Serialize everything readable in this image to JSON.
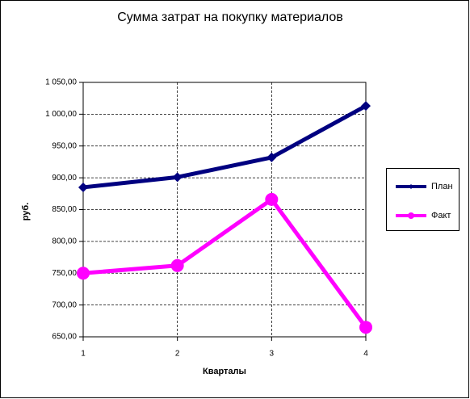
{
  "chart_data": {
    "type": "line",
    "title": "Сумма затрат на покупку материалов",
    "x_label": "Кварталы",
    "y_label": "руб.",
    "x": [
      1,
      2,
      3,
      4
    ],
    "xlim": [
      1,
      4
    ],
    "xticks": [
      1,
      2,
      3,
      4
    ],
    "ylim": [
      650,
      1050
    ],
    "yticks": [
      {
        "value": 650,
        "label": "650,00"
      },
      {
        "value": 700,
        "label": "700,00"
      },
      {
        "value": 750,
        "label": "750,00"
      },
      {
        "value": 800,
        "label": "800,00"
      },
      {
        "value": 850,
        "label": "850,00"
      },
      {
        "value": 900,
        "label": "900,00"
      },
      {
        "value": 950,
        "label": "950,00"
      },
      {
        "value": 1000,
        "label": "1 000,00"
      },
      {
        "value": 1050,
        "label": "1 050,00"
      }
    ],
    "grid": true,
    "legend": "right",
    "series": [
      {
        "name": "План",
        "color": "#000080",
        "marker": "diamond",
        "values": [
          885,
          901,
          932,
          1013
        ]
      },
      {
        "name": "Факт",
        "color": "#ff00ff",
        "marker": "circle",
        "values": [
          750,
          762,
          866,
          665
        ]
      }
    ]
  }
}
